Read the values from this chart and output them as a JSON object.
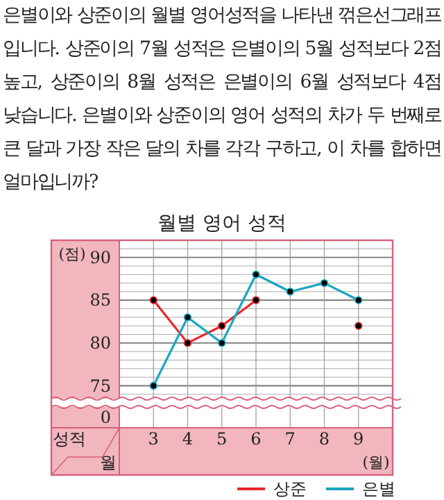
{
  "chart_data": {
    "type": "line",
    "title": "월별 영어 성적",
    "annotations": [
      "은별이와 상준이의 월별 영어성적을 나타낸 꺾은선그래프입니다. 상준이의 7월 성적은 은별이의 5월 성적보다 2점 높고, 상준이의 8월 성적은 은별이의 6월 성적보다 4점 낮습니다. 은별이와 상준이의 영어 성적의 차가 두 번째로 큰 달과 가장 작은 달의 차를 각각 구하고, 이 차를 합하면 얼마입니까?",
      "성적",
      "월",
      "0"
    ],
    "xlabel": "(월)",
    "ylabel": "(점)",
    "categories": [
      "3",
      "4",
      "5",
      "6",
      "7",
      "8",
      "9"
    ],
    "series": [
      {
        "name": "상준",
        "color": "#e8262a",
        "values": [
          85,
          80,
          82,
          85,
          null,
          null,
          82
        ]
      },
      {
        "name": "은별",
        "color": "#1aa6c0",
        "values": [
          75,
          83,
          80,
          88,
          86,
          87,
          85
        ]
      }
    ],
    "ylim": [
      73.5,
      92
    ],
    "yticks": [
      75,
      80,
      85,
      90
    ],
    "grid": true,
    "legend": "bottom right",
    "marker": "circle",
    "line_style": "solid"
  }
}
